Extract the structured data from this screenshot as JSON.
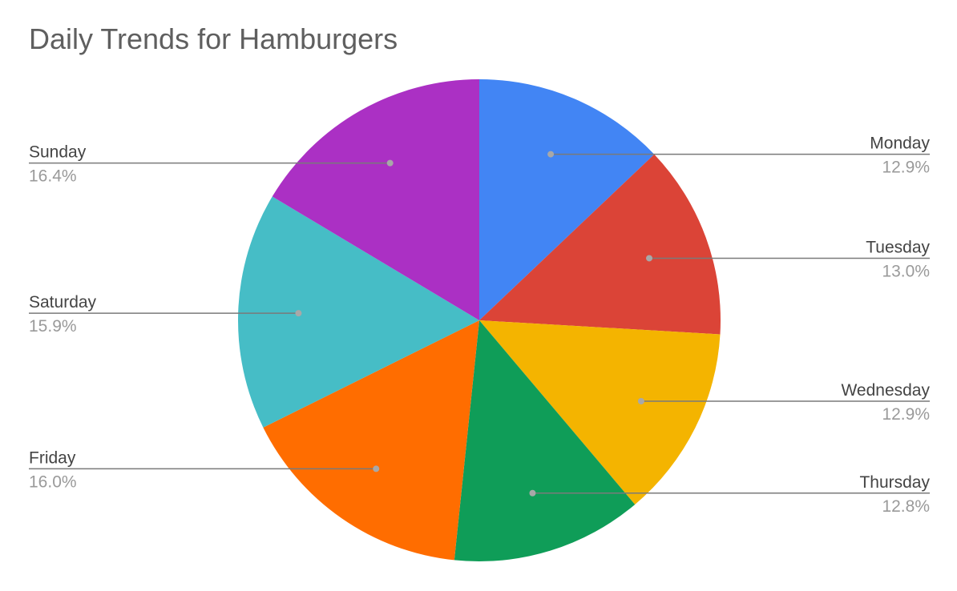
{
  "chart_data": {
    "type": "pie",
    "title": "Daily Trends for Hamburgers",
    "start_angle_deg": 0,
    "direction": "clockwise",
    "legend": "labels",
    "slices": [
      {
        "label": "Monday",
        "value": 12.9,
        "pct_label": "12.9%",
        "color": "#4285f4",
        "side": "right"
      },
      {
        "label": "Tuesday",
        "value": 13.0,
        "pct_label": "13.0%",
        "color": "#db4437",
        "side": "right"
      },
      {
        "label": "Wednesday",
        "value": 12.9,
        "pct_label": "12.9%",
        "color": "#f4b400",
        "side": "right"
      },
      {
        "label": "Thursday",
        "value": 12.8,
        "pct_label": "12.8%",
        "color": "#0f9d58",
        "side": "right"
      },
      {
        "label": "Friday",
        "value": 16.0,
        "pct_label": "16.0%",
        "color": "#ff6d00",
        "side": "left"
      },
      {
        "label": "Saturday",
        "value": 15.9,
        "pct_label": "15.9%",
        "color": "#46bdc6",
        "side": "left"
      },
      {
        "label": "Sunday",
        "value": 16.4,
        "pct_label": "16.4%",
        "color": "#ab30c4",
        "side": "left"
      }
    ]
  }
}
